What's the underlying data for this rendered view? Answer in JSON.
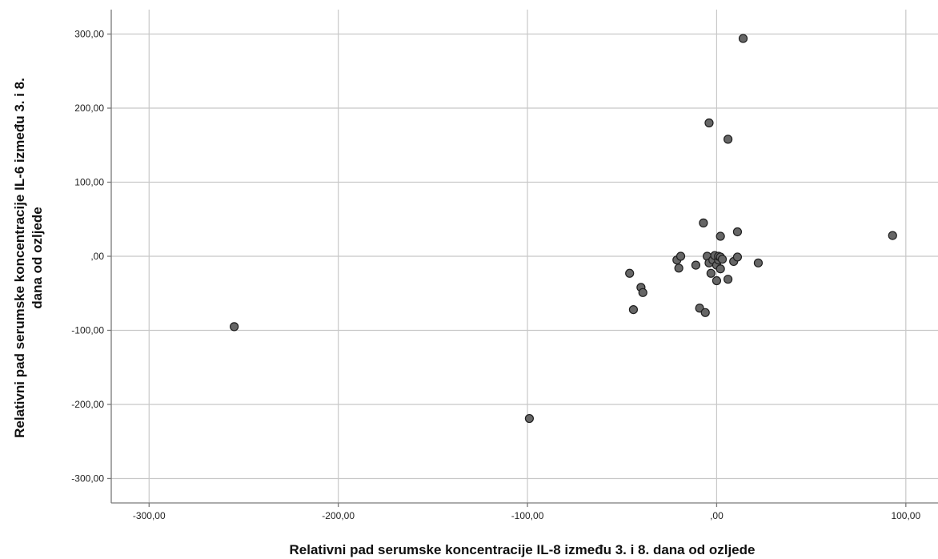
{
  "chart_data": {
    "type": "scatter",
    "xlabel": "Relativni pad serumske koncentracije IL-8 između 3. i 8. dana od ozljede",
    "ylabel_line1": "Relativni pad serumske koncentracije IL-6 između 3. i 8.",
    "ylabel_line2": "dana od ozljede",
    "xlim": [
      -320,
      117
    ],
    "ylim": [
      -333,
      333
    ],
    "grid": true,
    "x_ticks": [
      -300,
      -200,
      -100,
      0,
      100
    ],
    "y_ticks": [
      -300,
      -200,
      -100,
      0,
      100,
      200,
      300
    ],
    "x_tick_labels": [
      "-300,00",
      "-200,00",
      "-100,00",
      ",00",
      "100,00"
    ],
    "y_tick_labels": [
      "-300,00",
      "-200,00",
      "-100,00",
      ",00",
      "100,00",
      "200,00",
      "300,00"
    ],
    "points": [
      {
        "x": -255,
        "y": -95
      },
      {
        "x": -99,
        "y": -219
      },
      {
        "x": -46,
        "y": -23
      },
      {
        "x": -44,
        "y": -72
      },
      {
        "x": -40,
        "y": -42
      },
      {
        "x": -39,
        "y": -49
      },
      {
        "x": -21,
        "y": -5
      },
      {
        "x": -20,
        "y": -16
      },
      {
        "x": -19,
        "y": 0
      },
      {
        "x": -11,
        "y": -12
      },
      {
        "x": -9,
        "y": -70
      },
      {
        "x": -7,
        "y": 45
      },
      {
        "x": -6,
        "y": -76
      },
      {
        "x": -5,
        "y": 0
      },
      {
        "x": -4,
        "y": -9
      },
      {
        "x": -4,
        "y": 180
      },
      {
        "x": -3,
        "y": -23
      },
      {
        "x": -2,
        "y": -5
      },
      {
        "x": -1,
        "y": 1
      },
      {
        "x": 0,
        "y": -12
      },
      {
        "x": 0,
        "y": -33
      },
      {
        "x": 1,
        "y": -5
      },
      {
        "x": 1,
        "y": 0
      },
      {
        "x": 2,
        "y": -17
      },
      {
        "x": 2,
        "y": -1
      },
      {
        "x": 2,
        "y": 27
      },
      {
        "x": 3,
        "y": -4
      },
      {
        "x": 6,
        "y": -31
      },
      {
        "x": 6,
        "y": 158
      },
      {
        "x": 9,
        "y": -7
      },
      {
        "x": 11,
        "y": -1
      },
      {
        "x": 11,
        "y": 33
      },
      {
        "x": 14,
        "y": 294
      },
      {
        "x": 22,
        "y": -9
      },
      {
        "x": 93,
        "y": 28
      }
    ]
  }
}
